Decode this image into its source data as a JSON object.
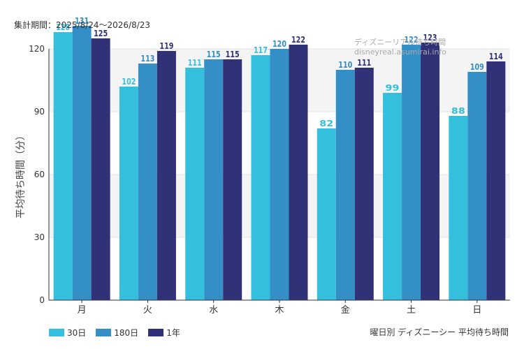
{
  "period_text": "集計期間：2025/8/24～2026/8/23",
  "watermark": "ディズニーリアル待ち時間 disneyreal.asumirai.info",
  "caption": "曜日別 ディズニーシー 平均待ち時間",
  "colors": {
    "30d": "#34c0dd",
    "180d": "#348fc6",
    "1y": "#313178"
  },
  "chart_data": {
    "type": "bar",
    "ylabel": "平均待ち時間（分）",
    "xlabel": "",
    "ylim": [
      0,
      120
    ],
    "yticks": [
      0,
      30,
      60,
      90,
      120
    ],
    "grid": true,
    "legend_position": "bottom-left",
    "categories": [
      "月",
      "火",
      "水",
      "木",
      "金",
      "土",
      "日"
    ],
    "series": [
      {
        "name": "30日",
        "key": "30d",
        "values": [
          128,
          102,
          111,
          117,
          82,
          99,
          88
        ]
      },
      {
        "name": "180日",
        "key": "180d",
        "values": [
          131,
          113,
          115,
          120,
          110,
          122,
          109
        ]
      },
      {
        "name": "1年",
        "key": "1y",
        "values": [
          125,
          119,
          115,
          122,
          111,
          123,
          114
        ]
      }
    ]
  }
}
